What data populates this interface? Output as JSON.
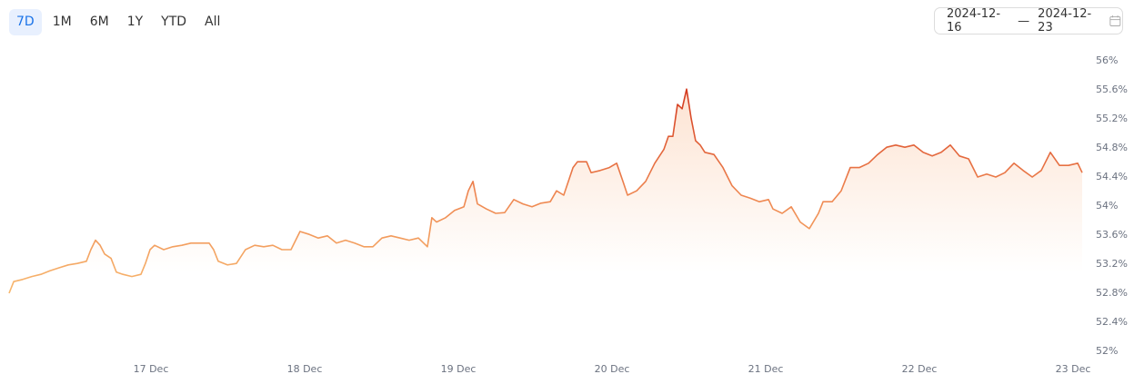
{
  "ui": {
    "ranges": [
      {
        "label": "7D",
        "active": true
      },
      {
        "label": "1M",
        "active": false
      },
      {
        "label": "6M",
        "active": false
      },
      {
        "label": "1Y",
        "active": false
      },
      {
        "label": "YTD",
        "active": false
      },
      {
        "label": "All",
        "active": false
      }
    ],
    "date_range": {
      "start": "2024-12-16",
      "separator": "—",
      "end": "2024-12-23"
    }
  },
  "chart_data": {
    "type": "line",
    "area": true,
    "line_colors": [
      "#f8bb70",
      "#ee8550",
      "#d2361c"
    ],
    "area_color": "#f7a36a",
    "x": [
      16.077,
      16.107,
      16.166,
      16.225,
      16.284,
      16.343,
      16.402,
      16.462,
      16.521,
      16.58,
      16.609,
      16.639,
      16.669,
      16.698,
      16.74,
      16.775,
      16.817,
      16.876,
      16.935,
      16.964,
      16.994,
      17.024,
      17.083,
      17.142,
      17.201,
      17.26,
      17.32,
      17.379,
      17.408,
      17.438,
      17.497,
      17.556,
      17.615,
      17.675,
      17.734,
      17.793,
      17.852,
      17.911,
      17.97,
      18.03,
      18.089,
      18.148,
      18.207,
      18.266,
      18.325,
      18.385,
      18.444,
      18.503,
      18.562,
      18.621,
      18.68,
      18.74,
      18.799,
      18.828,
      18.858,
      18.917,
      18.976,
      19.036,
      19.065,
      19.095,
      19.124,
      19.183,
      19.243,
      19.302,
      19.361,
      19.42,
      19.479,
      19.538,
      19.598,
      19.639,
      19.686,
      19.746,
      19.775,
      19.834,
      19.864,
      19.923,
      19.982,
      20.03,
      20.071,
      20.101,
      20.16,
      20.219,
      20.278,
      20.337,
      20.367,
      20.396,
      20.426,
      20.456,
      20.485,
      20.515,
      20.544,
      20.574,
      20.604,
      20.663,
      20.722,
      20.781,
      20.84,
      20.899,
      20.959,
      21.018,
      21.047,
      21.107,
      21.166,
      21.225,
      21.284,
      21.343,
      21.373,
      21.432,
      21.491,
      21.55,
      21.609,
      21.669,
      21.728,
      21.787,
      21.846,
      21.905,
      21.964,
      22.024,
      22.083,
      22.142,
      22.201,
      22.26,
      22.32,
      22.379,
      22.438,
      22.497,
      22.556,
      22.615,
      22.675,
      22.734,
      22.793,
      22.852,
      22.911,
      22.97,
      23.03,
      23.059
    ],
    "values": [
      52.8,
      52.96,
      52.99,
      53.03,
      53.06,
      53.11,
      53.15,
      53.19,
      53.21,
      53.24,
      53.4,
      53.53,
      53.46,
      53.34,
      53.28,
      53.09,
      53.06,
      53.03,
      53.06,
      53.21,
      53.4,
      53.46,
      53.4,
      53.44,
      53.46,
      53.49,
      53.49,
      53.49,
      53.4,
      53.24,
      53.19,
      53.21,
      53.4,
      53.46,
      53.44,
      53.46,
      53.4,
      53.4,
      53.65,
      53.61,
      53.56,
      53.59,
      53.49,
      53.53,
      53.49,
      53.44,
      53.44,
      53.56,
      53.59,
      53.56,
      53.53,
      53.56,
      53.44,
      53.84,
      53.78,
      53.84,
      53.94,
      53.99,
      54.21,
      54.34,
      54.03,
      53.96,
      53.9,
      53.91,
      54.09,
      54.03,
      53.99,
      54.04,
      54.06,
      54.21,
      54.15,
      54.53,
      54.61,
      54.61,
      54.46,
      54.49,
      54.53,
      54.59,
      54.34,
      54.15,
      54.21,
      54.34,
      54.59,
      54.78,
      54.96,
      54.96,
      55.4,
      55.34,
      55.61,
      55.21,
      54.9,
      54.84,
      54.74,
      54.71,
      54.53,
      54.28,
      54.15,
      54.11,
      54.06,
      54.09,
      53.96,
      53.9,
      53.99,
      53.78,
      53.69,
      53.9,
      54.06,
      54.06,
      54.21,
      54.53,
      54.53,
      54.59,
      54.71,
      54.81,
      54.84,
      54.81,
      54.84,
      54.74,
      54.69,
      54.74,
      54.84,
      54.69,
      54.65,
      54.4,
      54.44,
      54.4,
      54.46,
      54.59,
      54.49,
      54.4,
      54.49,
      54.74,
      54.56,
      54.56,
      54.59,
      54.46
    ],
    "xlim": [
      16.077,
      23.059
    ],
    "xticks": [
      {
        "value": 17,
        "label": "17 Dec"
      },
      {
        "value": 18,
        "label": "18 Dec"
      },
      {
        "value": 19,
        "label": "19 Dec"
      },
      {
        "value": 20,
        "label": "20 Dec"
      },
      {
        "value": 21,
        "label": "21 Dec"
      },
      {
        "value": 22,
        "label": "22 Dec"
      },
      {
        "value": 23,
        "label": "23 Dec"
      }
    ],
    "ylim": [
      52,
      56
    ],
    "yticks": [
      {
        "value": 52,
        "label": "52%"
      },
      {
        "value": 52.4,
        "label": "52.4%"
      },
      {
        "value": 52.8,
        "label": "52.8%"
      },
      {
        "value": 53.2,
        "label": "53.2%"
      },
      {
        "value": 53.6,
        "label": "53.6%"
      },
      {
        "value": 54,
        "label": "54%"
      },
      {
        "value": 54.4,
        "label": "54.4%"
      },
      {
        "value": 54.8,
        "label": "54.8%"
      },
      {
        "value": 55.2,
        "label": "55.2%"
      },
      {
        "value": 55.6,
        "label": "55.6%"
      },
      {
        "value": 56,
        "label": "56%"
      }
    ]
  }
}
